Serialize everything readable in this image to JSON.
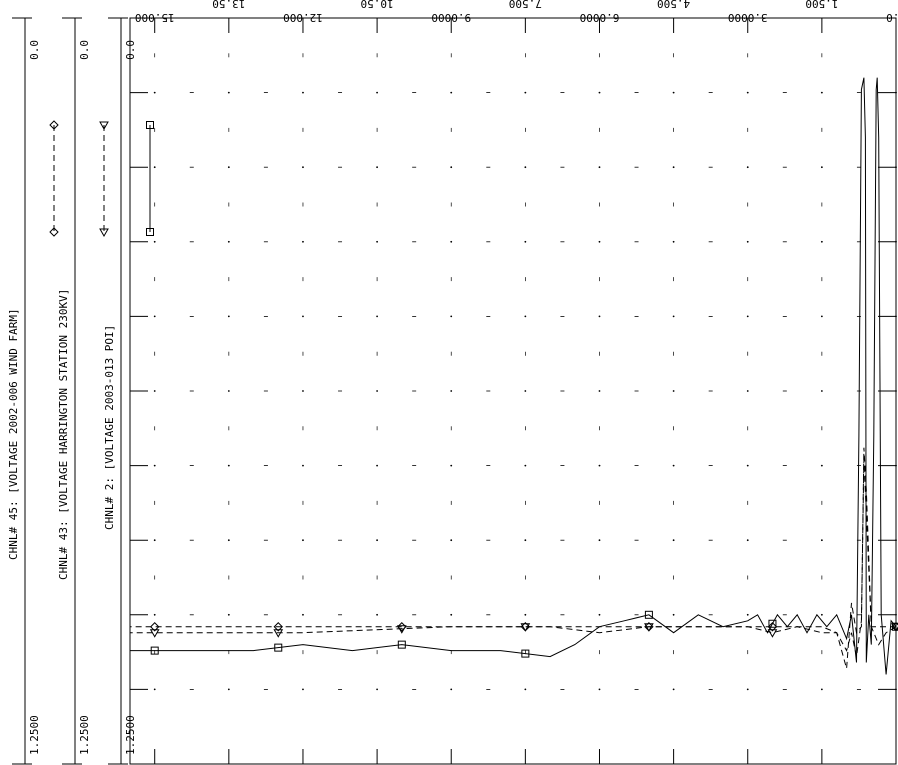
{
  "chart_data": {
    "type": "line",
    "x_axis": {
      "reversed": true,
      "major_tick_labels": [
        "0.0",
        "3.0000",
        "6.0000",
        "9.0000",
        "12.000",
        "15.000"
      ],
      "minor_tick_labels": [
        "1.500",
        "4.500",
        "7.500",
        "10.50",
        "13.50"
      ],
      "xlim": [
        0,
        15.5
      ]
    },
    "grid": "dotted",
    "series": [
      {
        "name": "CHNL# 45: [VOLTAGE 2002-006 WIND FARM]",
        "name_short": "CHNL# 45:",
        "name_rest": "[VOLTAGE 2002-006 WIND FARM]",
        "marker": "diamond",
        "line_style": "dashed",
        "axis_top": "0.0",
        "axis_bottom": "1.2500",
        "ylim": [
          0,
          1.25
        ],
        "x": [
          0.0,
          0.5,
          0.6,
          0.65,
          0.7,
          0.8,
          0.9,
          1.0,
          1.2,
          1.5,
          2.0,
          2.5,
          3.0,
          4.0,
          5.0,
          6.0,
          7.0,
          9.0,
          12.0,
          15.5
        ],
        "values": [
          1.02,
          1.02,
          0.79,
          0.72,
          1.02,
          1.03,
          0.98,
          1.09,
          1.03,
          1.02,
          1.02,
          1.02,
          1.02,
          1.02,
          1.02,
          1.02,
          1.02,
          1.02,
          1.02,
          1.02
        ]
      },
      {
        "name": "CHNL# 43: [VOLTAGE HARRINGTON STATION 230KV]",
        "name_short": "CHNL# 43:",
        "name_rest": "[VOLTAGE HARRINGTON STATION 230KV]",
        "marker": "triangle-down",
        "line_style": "dashed",
        "axis_top": "0.0",
        "axis_bottom": "1.2500",
        "ylim": [
          0,
          1.25
        ],
        "x": [
          0.0,
          0.2,
          0.35,
          0.5,
          0.6,
          0.65,
          0.7,
          0.8,
          0.9,
          1.0,
          1.2,
          1.5,
          2.0,
          2.5,
          3.0,
          4.0,
          5.0,
          6.0,
          7.0,
          9.0,
          12.0,
          15.5
        ],
        "values": [
          1.02,
          1.03,
          1.05,
          1.02,
          0.83,
          0.74,
          1.01,
          1.07,
          1.03,
          1.06,
          1.03,
          1.03,
          1.02,
          1.03,
          1.02,
          1.02,
          1.02,
          1.03,
          1.02,
          1.02,
          1.03,
          1.03
        ]
      },
      {
        "name": "CHNL# 2: [VOLTAGE 2003-013 POI]",
        "name_short": "CHNL# 2:",
        "name_rest": "[VOLTAGE 2003-013 POI]",
        "marker": "square",
        "line_style": "solid",
        "axis_top": "0.0",
        "axis_bottom": "1.2500",
        "ylim": [
          0,
          1.25
        ],
        "x": [
          0.0,
          0.1,
          0.2,
          0.3,
          0.35,
          0.38,
          0.4,
          0.45,
          0.5,
          0.55,
          0.6,
          0.62,
          0.65,
          0.7,
          0.75,
          0.8,
          0.9,
          1.0,
          1.2,
          1.4,
          1.6,
          1.8,
          2.0,
          2.2,
          2.4,
          2.6,
          2.8,
          3.0,
          3.5,
          4.0,
          4.5,
          5.0,
          5.5,
          6.0,
          6.5,
          7.0,
          8.0,
          9.0,
          10.0,
          11.0,
          12.0,
          13.0,
          14.0,
          15.5
        ],
        "values": [
          1.02,
          1.01,
          1.1,
          1.0,
          0.2,
          0.1,
          0.12,
          0.7,
          1.05,
          1.0,
          1.08,
          0.2,
          0.1,
          0.12,
          0.7,
          1.08,
          1.0,
          1.04,
          1.0,
          1.02,
          1.0,
          1.03,
          1.0,
          1.02,
          1.0,
          1.03,
          1.0,
          1.01,
          1.02,
          1.0,
          1.03,
          1.0,
          1.01,
          1.02,
          1.05,
          1.07,
          1.06,
          1.06,
          1.05,
          1.06,
          1.05,
          1.06,
          1.06,
          1.06
        ]
      }
    ]
  }
}
